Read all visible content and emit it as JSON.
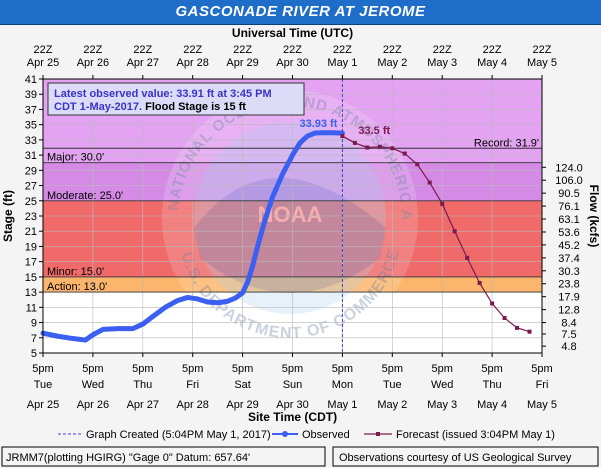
{
  "title": "GASCONADE RIVER AT JEROME",
  "top_axis_title": "Universal Time (UTC)",
  "top_ticks": [
    {
      "l1": "22Z",
      "l2": "Apr 25"
    },
    {
      "l1": "22Z",
      "l2": "Apr 26"
    },
    {
      "l1": "22Z",
      "l2": "Apr 27"
    },
    {
      "l1": "22Z",
      "l2": "Apr 28"
    },
    {
      "l1": "22Z",
      "l2": "Apr 29"
    },
    {
      "l1": "22Z",
      "l2": "Apr 30"
    },
    {
      "l1": "22Z",
      "l2": "May 1"
    },
    {
      "l1": "22Z",
      "l2": "May 2"
    },
    {
      "l1": "22Z",
      "l2": "May 3"
    },
    {
      "l1": "22Z",
      "l2": "May 4"
    },
    {
      "l1": "22Z",
      "l2": "May 5"
    }
  ],
  "bottom_axis_title": "Site Time (CDT)",
  "bottom_ticks": [
    {
      "l1": "5pm",
      "l2": "Tue",
      "l3": "Apr 25"
    },
    {
      "l1": "5pm",
      "l2": "Wed",
      "l3": "Apr 26"
    },
    {
      "l1": "5pm",
      "l2": "Thu",
      "l3": "Apr 27"
    },
    {
      "l1": "5pm",
      "l2": "Fri",
      "l3": "Apr 28"
    },
    {
      "l1": "5pm",
      "l2": "Sat",
      "l3": "Apr 29"
    },
    {
      "l1": "5pm",
      "l2": "Sun",
      "l3": "Apr 30"
    },
    {
      "l1": "5pm",
      "l2": "Mon",
      "l3": "May 1"
    },
    {
      "l1": "5pm",
      "l2": "Tue",
      "l3": "May 2"
    },
    {
      "l1": "5pm",
      "l2": "Wed",
      "l3": "May 3"
    },
    {
      "l1": "5pm",
      "l2": "Thu",
      "l3": "May 4"
    },
    {
      "l1": "5pm",
      "l2": "Fri",
      "l3": "May 5"
    }
  ],
  "chart_data": {
    "type": "line",
    "xlabel": "Site Time (CDT)",
    "ylabel": "Stage (ft)",
    "y2label": "Flow (kcfs)",
    "x_unit": "days since Apr 25 5pm CDT",
    "xlim": [
      0,
      10
    ],
    "ylim": [
      5,
      41
    ],
    "y_ticks": [
      5,
      7,
      9,
      11,
      13,
      15,
      17,
      19,
      21,
      23,
      25,
      27,
      29,
      31,
      33,
      35,
      37,
      39,
      41
    ],
    "y2_ticks": [
      {
        "stage": 5.9,
        "label": "4.8"
      },
      {
        "stage": 7.5,
        "label": "7.5"
      },
      {
        "stage": 9.0,
        "label": "8.4"
      },
      {
        "stage": 10.7,
        "label": "12.8"
      },
      {
        "stage": 12.4,
        "label": "17.9"
      },
      {
        "stage": 14.1,
        "label": "23.8"
      },
      {
        "stage": 15.8,
        "label": "30.3"
      },
      {
        "stage": 17.5,
        "label": "37.4"
      },
      {
        "stage": 19.2,
        "label": "45.2"
      },
      {
        "stage": 20.9,
        "label": "53.6"
      },
      {
        "stage": 22.6,
        "label": "63.1"
      },
      {
        "stage": 24.3,
        "label": "76.1"
      },
      {
        "stage": 26.0,
        "label": "90.5"
      },
      {
        "stage": 27.7,
        "label": "106.0"
      },
      {
        "stage": 29.4,
        "label": "124.0"
      }
    ],
    "flood_categories": [
      {
        "name": "Record",
        "label": "Record: 31.9'",
        "value": 31.9
      },
      {
        "name": "Major",
        "label": "Major: 30.0'",
        "value": 30.0,
        "color": "#d58be6"
      },
      {
        "name": "Moderate",
        "label": "Moderate: 25.0'",
        "value": 25.0,
        "color": "#f06a6a"
      },
      {
        "name": "Minor",
        "label": "Minor: 15.0'",
        "value": 15.0,
        "color": "#fbb56c"
      },
      {
        "name": "Action",
        "label": "Action: 13.0'",
        "value": 13.0,
        "color": "#fbfb7a"
      }
    ],
    "series": [
      {
        "name": "Observed",
        "color": "#3b5ff0",
        "x": [
          0,
          0.3,
          0.6,
          0.85,
          1.0,
          1.2,
          1.5,
          1.8,
          2.0,
          2.2,
          2.45,
          2.7,
          2.9,
          3.1,
          3.3,
          3.5,
          3.7,
          3.85,
          4.0,
          4.1,
          4.2,
          4.3,
          4.45,
          4.6,
          4.8,
          5.0,
          5.15,
          5.3,
          5.45,
          5.6,
          5.8,
          5.95,
          6.0
        ],
        "y": [
          7.6,
          7.2,
          6.9,
          6.7,
          7.4,
          8.1,
          8.2,
          8.2,
          8.8,
          9.8,
          11.0,
          11.9,
          12.3,
          12.1,
          11.7,
          11.6,
          11.8,
          12.2,
          12.9,
          14.3,
          16.4,
          19.0,
          22.5,
          25.5,
          28.5,
          31.0,
          32.6,
          33.5,
          33.9,
          33.93,
          33.93,
          33.91,
          33.91
        ]
      },
      {
        "name": "Forecast",
        "color": "#7a1a4e",
        "x": [
          6.0,
          6.25,
          6.5,
          6.75,
          7.0,
          7.25,
          7.5,
          7.75,
          8.0,
          8.25,
          8.5,
          8.75,
          9.0,
          9.25,
          9.5,
          9.75
        ],
        "y": [
          33.5,
          32.6,
          32.0,
          32.1,
          31.9,
          31.2,
          29.8,
          27.4,
          24.6,
          21.0,
          17.5,
          14.2,
          11.5,
          9.6,
          8.3,
          7.8
        ]
      }
    ],
    "labels": {
      "observed_peak": "33.93 ft",
      "forecast_peak": "33.5 ft"
    },
    "created_x": 6.0,
    "colors": {
      "above_major": "#e3a2f2",
      "below_action": "#ffffff"
    }
  },
  "info_box": {
    "line1": "Latest observed value: 33.91 ft at 3:45 PM",
    "line2": "CDT 1-May-2017.",
    "line2b": " Flood Stage is 15 ft"
  },
  "legend": {
    "created": "Graph Created (5:04PM May 1, 2017)",
    "observed": "Observed",
    "forecast": "Forecast (issued 3:04PM May 1)"
  },
  "footer": {
    "left": "JRMM7(plotting HGIRG) \"Gage 0\" Datum: 657.64'",
    "right": "Observations courtesy of US Geological Survey"
  },
  "watermark": {
    "arc_left": "NATIONAL OCEANIC AND",
    "arc_top": "ATMOSPHERIC",
    "arc_right": "ADMINISTRATION",
    "arc_bottom": "U.S. DEPARTMENT OF COMMERCE",
    "center": "NOAA"
  }
}
